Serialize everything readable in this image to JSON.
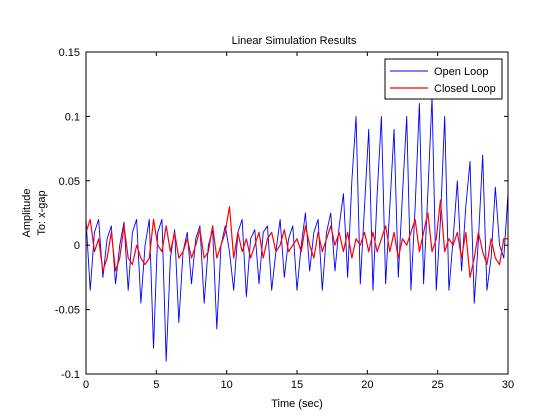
{
  "chart_data": {
    "type": "line",
    "title": "Linear Simulation Results",
    "xlabel": "Time (sec)",
    "ylabel": "Amplitude",
    "ylabel2": "To: x-gap",
    "xlim": [
      0,
      30
    ],
    "ylim": [
      -0.1,
      0.15
    ],
    "x_ticks": [
      0,
      5,
      10,
      15,
      20,
      25,
      30
    ],
    "x_tick_labels": [
      "0",
      "5",
      "10",
      "15",
      "20",
      "25",
      "30"
    ],
    "y_ticks": [
      -0.1,
      -0.05,
      0,
      0.05,
      0.1,
      0.15
    ],
    "y_tick_labels": [
      "-0.1",
      "-0.05",
      "0",
      "0.05",
      "0.1",
      "0.15"
    ],
    "grid": false,
    "legend_position": "top-right",
    "series": [
      {
        "name": "Open Loop",
        "color": "#0000ff",
        "x": [
          0,
          0.3,
          0.6,
          0.9,
          1.2,
          1.5,
          1.8,
          2.1,
          2.4,
          2.7,
          3.0,
          3.3,
          3.6,
          3.9,
          4.2,
          4.5,
          4.8,
          5.1,
          5.4,
          5.7,
          6.0,
          6.3,
          6.6,
          6.9,
          7.2,
          7.5,
          7.8,
          8.1,
          8.4,
          8.7,
          9.0,
          9.3,
          9.6,
          9.9,
          10.2,
          10.5,
          10.8,
          11.1,
          11.4,
          11.7,
          12.0,
          12.3,
          12.6,
          12.9,
          13.2,
          13.5,
          13.8,
          14.1,
          14.4,
          14.7,
          15.0,
          15.3,
          15.6,
          15.9,
          16.2,
          16.5,
          16.8,
          17.1,
          17.4,
          17.7,
          18.0,
          18.3,
          18.6,
          18.9,
          19.2,
          19.5,
          19.8,
          20.1,
          20.4,
          20.7,
          21.0,
          21.3,
          21.6,
          21.9,
          22.2,
          22.5,
          22.8,
          23.1,
          23.4,
          23.7,
          24.0,
          24.3,
          24.6,
          24.9,
          25.2,
          25.5,
          25.8,
          26.1,
          26.4,
          26.7,
          27.0,
          27.3,
          27.6,
          27.9,
          28.2,
          28.5,
          28.8,
          29.1,
          29.4,
          29.7,
          30.0
        ],
        "values": [
          0.02,
          -0.035,
          0.01,
          0.02,
          -0.025,
          0.005,
          0.015,
          -0.03,
          0.0,
          0.018,
          -0.035,
          0.01,
          0.02,
          -0.045,
          0.0,
          0.02,
          -0.08,
          0.01,
          0.02,
          -0.09,
          -0.01,
          0.012,
          -0.06,
          -0.005,
          0.01,
          -0.03,
          0.005,
          0.015,
          -0.045,
          0.0,
          0.012,
          -0.065,
          0.0,
          0.015,
          -0.005,
          -0.035,
          0.01,
          0.02,
          -0.04,
          0.005,
          0.012,
          -0.03,
          0.01,
          0.015,
          -0.035,
          -0.005,
          0.02,
          -0.025,
          0.005,
          0.015,
          -0.035,
          0.0,
          0.025,
          -0.02,
          0.01,
          0.02,
          -0.035,
          0.01,
          0.025,
          -0.02,
          0.015,
          0.04,
          -0.025,
          0.05,
          0.1,
          -0.03,
          0.03,
          0.09,
          -0.035,
          0.04,
          0.1,
          -0.03,
          0.03,
          0.09,
          -0.025,
          0.04,
          0.1,
          -0.035,
          0.03,
          0.11,
          -0.03,
          0.04,
          0.115,
          -0.035,
          0.02,
          0.1,
          -0.035,
          0.005,
          0.05,
          -0.02,
          0.03,
          0.065,
          -0.045,
          0.005,
          0.07,
          -0.035,
          -0.01,
          0.045,
          0.0,
          -0.01,
          0.04
        ]
      },
      {
        "name": "Closed Loop",
        "color": "#ff0000",
        "x": [
          0,
          0.3,
          0.6,
          0.9,
          1.2,
          1.5,
          1.8,
          2.1,
          2.4,
          2.7,
          3.0,
          3.3,
          3.6,
          3.9,
          4.2,
          4.5,
          4.8,
          5.1,
          5.4,
          5.7,
          6.0,
          6.3,
          6.6,
          6.9,
          7.2,
          7.5,
          7.8,
          8.1,
          8.4,
          8.7,
          9.0,
          9.3,
          9.6,
          9.9,
          10.2,
          10.5,
          10.8,
          11.1,
          11.4,
          11.7,
          12.0,
          12.3,
          12.6,
          12.9,
          13.2,
          13.5,
          13.8,
          14.1,
          14.4,
          14.7,
          15.0,
          15.3,
          15.6,
          15.9,
          16.2,
          16.5,
          16.8,
          17.1,
          17.4,
          17.7,
          18.0,
          18.3,
          18.6,
          18.9,
          19.2,
          19.5,
          19.8,
          20.1,
          20.4,
          20.7,
          21.0,
          21.3,
          21.6,
          21.9,
          22.2,
          22.5,
          22.8,
          23.1,
          23.4,
          23.7,
          24.0,
          24.3,
          24.6,
          24.9,
          25.2,
          25.5,
          25.8,
          26.1,
          26.4,
          26.7,
          27.0,
          27.3,
          27.6,
          27.9,
          28.2,
          28.5,
          28.8,
          29.1,
          29.4,
          29.7,
          30.0
        ],
        "values": [
          0.01,
          0.02,
          -0.005,
          0.005,
          -0.02,
          -0.01,
          0.01,
          -0.02,
          -0.01,
          0.015,
          -0.01,
          -0.015,
          0.0,
          -0.01,
          -0.015,
          -0.01,
          0.02,
          0.0,
          -0.005,
          0.015,
          -0.005,
          0.01,
          -0.01,
          -0.005,
          0.005,
          -0.01,
          0.0,
          0.012,
          -0.01,
          -0.005,
          0.015,
          -0.01,
          0.0,
          0.01,
          0.03,
          -0.01,
          0.01,
          -0.005,
          0.005,
          -0.01,
          0.0,
          0.01,
          -0.01,
          0.005,
          0.01,
          -0.005,
          0.0,
          0.012,
          -0.005,
          0.0,
          0.005,
          -0.005,
          0.015,
          0.0,
          -0.01,
          0.01,
          -0.005,
          0.005,
          0.015,
          0.0,
          0.01,
          -0.005,
          0.01,
          -0.01,
          0.005,
          0.0,
          0.01,
          -0.005,
          0.01,
          -0.005,
          0.005,
          0.015,
          -0.005,
          0.01,
          -0.01,
          0.005,
          0.0,
          0.01,
          0.02,
          -0.005,
          0.01,
          0.025,
          -0.005,
          0.005,
          0.035,
          -0.005,
          0.005,
          0.0,
          0.01,
          -0.01,
          0.01,
          -0.025,
          -0.01,
          0.01,
          -0.005,
          -0.015,
          0.005,
          -0.01,
          -0.015,
          0.005,
          0.005
        ]
      }
    ]
  }
}
